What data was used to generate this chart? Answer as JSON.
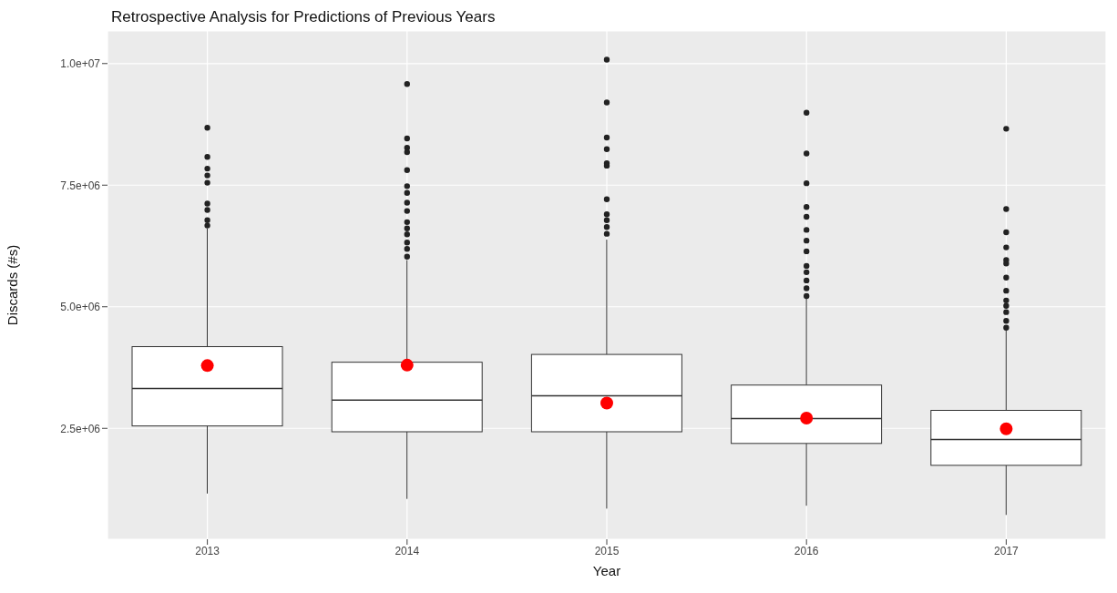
{
  "chart_data": {
    "type": "box",
    "title": "Retrospective Analysis for Predictions of Previous Years",
    "xlabel": "Year",
    "ylabel": "Discards (#s)",
    "categories": [
      "2013",
      "2014",
      "2015",
      "2016",
      "2017"
    ],
    "boxes": [
      {
        "low": 1160000,
        "q1": 2550000,
        "median": 3320000,
        "q3": 4180000,
        "high": 6610000,
        "mean": 3790000,
        "outliers": [
          8680000,
          8080000,
          7840000,
          7700000,
          7550000,
          7120000,
          6990000,
          6780000,
          6670000
        ]
      },
      {
        "low": 1050000,
        "q1": 2430000,
        "median": 3080000,
        "q3": 3860000,
        "high": 5960000,
        "mean": 3800000,
        "outliers": [
          9580000,
          8460000,
          8270000,
          8180000,
          7810000,
          7480000,
          7340000,
          7140000,
          6970000,
          6740000,
          6610000,
          6490000,
          6320000,
          6190000,
          6030000
        ]
      },
      {
        "low": 850000,
        "q1": 2430000,
        "median": 3170000,
        "q3": 4020000,
        "high": 6380000,
        "mean": 3020000,
        "outliers": [
          10080000,
          9200000,
          8480000,
          8240000,
          7950000,
          7900000,
          7210000,
          6900000,
          6780000,
          6640000,
          6500000
        ]
      },
      {
        "low": 910000,
        "q1": 2190000,
        "median": 2700000,
        "q3": 3390000,
        "high": 5170000,
        "mean": 2710000,
        "outliers": [
          8990000,
          8150000,
          7540000,
          7050000,
          6850000,
          6580000,
          6360000,
          6140000,
          5840000,
          5710000,
          5540000,
          5380000,
          5220000
        ]
      },
      {
        "low": 720000,
        "q1": 1740000,
        "median": 2270000,
        "q3": 2870000,
        "high": 4520000,
        "mean": 2490000,
        "outliers": [
          8660000,
          7010000,
          6530000,
          6220000,
          5960000,
          5890000,
          5600000,
          5330000,
          5130000,
          5020000,
          4890000,
          4710000,
          4570000
        ]
      }
    ],
    "ylim": [
      220000,
      10670000
    ],
    "yticks": [
      {
        "value": 2500000,
        "label": "2.5e+06"
      },
      {
        "value": 5000000,
        "label": "5.0e+06"
      },
      {
        "value": 7500000,
        "label": "7.5e+06"
      },
      {
        "value": 10000000,
        "label": "1.0e+07"
      }
    ],
    "grid": true
  }
}
